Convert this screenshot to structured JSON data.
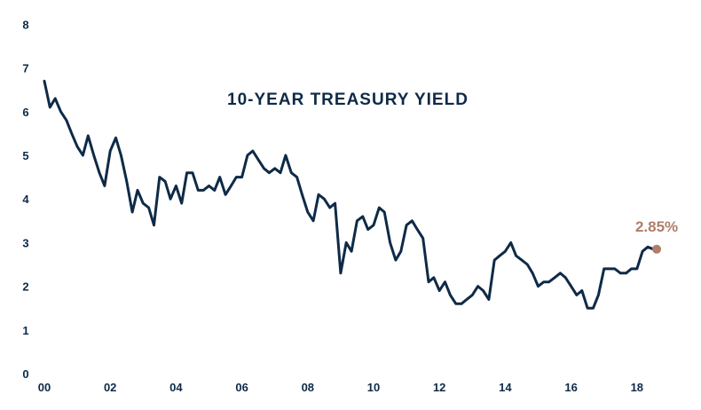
{
  "chart_data": {
    "type": "line",
    "title": "10-YEAR TREASURY YIELD",
    "xlabel": "",
    "ylabel": "",
    "x_ticks": [
      {
        "value": 2000,
        "label": "00"
      },
      {
        "value": 2002,
        "label": "02"
      },
      {
        "value": 2004,
        "label": "04"
      },
      {
        "value": 2006,
        "label": "06"
      },
      {
        "value": 2008,
        "label": "08"
      },
      {
        "value": 2010,
        "label": "10"
      },
      {
        "value": 2012,
        "label": "12"
      },
      {
        "value": 2014,
        "label": "14"
      },
      {
        "value": 2016,
        "label": "16"
      },
      {
        "value": 2018,
        "label": "18"
      }
    ],
    "y_ticks": [
      "0",
      "1",
      "2",
      "3",
      "4",
      "5",
      "6",
      "7",
      "8"
    ],
    "xlim": [
      2000,
      2020
    ],
    "ylim": [
      0,
      8
    ],
    "grid": false,
    "line_color": "#0e2a47",
    "marker_color": "#b07d68",
    "end_label": "2.85%",
    "end_point": {
      "x": 2018.6,
      "y": 2.85
    },
    "series": [
      {
        "x": [
          2000.0,
          2000.17,
          2000.33,
          2000.5,
          2000.67,
          2000.83,
          2001.0,
          2001.17,
          2001.33,
          2001.5,
          2001.67,
          2001.83,
          2002.0,
          2002.17,
          2002.33,
          2002.5,
          2002.67,
          2002.83,
          2003.0,
          2003.17,
          2003.33,
          2003.5,
          2003.67,
          2003.83,
          2004.0,
          2004.17,
          2004.33,
          2004.5,
          2004.67,
          2004.83,
          2005.0,
          2005.17,
          2005.33,
          2005.5,
          2005.67,
          2005.83,
          2006.0,
          2006.17,
          2006.33,
          2006.5,
          2006.67,
          2006.83,
          2007.0,
          2007.17,
          2007.33,
          2007.5,
          2007.67,
          2007.83,
          2008.0,
          2008.17,
          2008.33,
          2008.5,
          2008.67,
          2008.83,
          2009.0,
          2009.17,
          2009.33,
          2009.5,
          2009.67,
          2009.83,
          2010.0,
          2010.17,
          2010.33,
          2010.5,
          2010.67,
          2010.83,
          2011.0,
          2011.17,
          2011.33,
          2011.5,
          2011.67,
          2011.83,
          2012.0,
          2012.17,
          2012.33,
          2012.5,
          2012.67,
          2012.83,
          2013.0,
          2013.17,
          2013.33,
          2013.5,
          2013.67,
          2013.83,
          2014.0,
          2014.17,
          2014.33,
          2014.5,
          2014.67,
          2014.83,
          2015.0,
          2015.17,
          2015.33,
          2015.5,
          2015.67,
          2015.83,
          2016.0,
          2016.17,
          2016.33,
          2016.5,
          2016.67,
          2016.83,
          2017.0,
          2017.17,
          2017.33,
          2017.5,
          2017.67,
          2017.83,
          2018.0,
          2018.17,
          2018.33,
          2018.5
        ],
        "values": [
          6.7,
          6.1,
          6.3,
          6.0,
          5.8,
          5.5,
          5.2,
          5.0,
          5.45,
          5.0,
          4.6,
          4.3,
          5.1,
          5.4,
          5.0,
          4.4,
          3.7,
          4.2,
          3.9,
          3.8,
          3.4,
          4.5,
          4.4,
          4.0,
          4.3,
          3.9,
          4.6,
          4.6,
          4.2,
          4.2,
          4.3,
          4.2,
          4.5,
          4.1,
          4.3,
          4.5,
          4.5,
          5.0,
          5.1,
          4.9,
          4.7,
          4.6,
          4.7,
          4.6,
          5.0,
          4.6,
          4.5,
          4.1,
          3.7,
          3.5,
          4.1,
          4.0,
          3.8,
          3.9,
          2.3,
          3.0,
          2.8,
          3.5,
          3.6,
          3.3,
          3.4,
          3.8,
          3.7,
          3.0,
          2.6,
          2.8,
          3.4,
          3.5,
          3.3,
          3.1,
          2.1,
          2.2,
          1.9,
          2.1,
          1.8,
          1.6,
          1.6,
          1.7,
          1.8,
          2.0,
          1.9,
          1.7,
          2.6,
          2.7,
          2.8,
          3.0,
          2.7,
          2.6,
          2.5,
          2.3,
          2.0,
          2.1,
          2.1,
          2.2,
          2.3,
          2.2,
          2.0,
          1.8,
          1.9,
          1.5,
          1.5,
          1.8,
          2.4,
          2.4,
          2.4,
          2.3,
          2.3,
          2.4,
          2.4,
          2.8,
          2.9,
          2.85
        ]
      }
    ]
  }
}
